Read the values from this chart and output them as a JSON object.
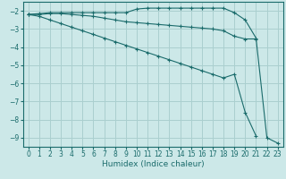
{
  "xlabel": "Humidex (Indice chaleur)",
  "xlim": [
    -0.5,
    23.5
  ],
  "ylim": [
    -9.5,
    -1.5
  ],
  "yticks": [
    -2,
    -3,
    -4,
    -5,
    -6,
    -7,
    -8,
    -9
  ],
  "xticks": [
    0,
    1,
    2,
    3,
    4,
    5,
    6,
    7,
    8,
    9,
    10,
    11,
    12,
    13,
    14,
    15,
    16,
    17,
    18,
    19,
    20,
    21,
    22,
    23
  ],
  "bg_color": "#cce8e8",
  "grid_color": "#aacfcf",
  "line_color": "#1a6b6b",
  "line1_x": [
    0,
    1,
    2,
    3,
    4,
    5,
    6,
    7,
    8,
    9,
    10,
    11,
    12,
    13,
    14,
    15,
    16,
    17,
    18,
    19,
    20,
    21,
    22,
    23
  ],
  "line1_y": [
    -2.2,
    -2.15,
    -2.1,
    -2.1,
    -2.1,
    -2.1,
    -2.1,
    -2.1,
    -2.1,
    -2.1,
    -1.9,
    -1.85,
    -1.85,
    -1.85,
    -1.85,
    -1.85,
    -1.85,
    -1.85,
    -1.85,
    -2.1,
    -2.5,
    -3.5,
    -9.0,
    -9.3
  ],
  "line2_x": [
    0,
    1,
    2,
    3,
    4,
    5,
    6,
    7,
    8,
    9,
    10,
    11,
    12,
    13,
    14,
    15,
    16,
    17,
    18,
    19,
    20,
    21
  ],
  "line2_y": [
    -2.2,
    -2.2,
    -2.15,
    -2.15,
    -2.2,
    -2.25,
    -2.3,
    -2.4,
    -2.5,
    -2.6,
    -2.65,
    -2.7,
    -2.75,
    -2.8,
    -2.85,
    -2.9,
    -2.95,
    -3.0,
    -3.1,
    -3.4,
    -3.55,
    -3.55
  ],
  "line3_x": [
    0,
    1,
    2,
    3,
    4,
    5,
    6,
    7,
    8,
    9,
    10,
    11,
    12,
    13,
    14,
    15,
    16,
    17,
    18,
    19,
    20,
    21
  ],
  "line3_y": [
    -2.2,
    -2.3,
    -2.5,
    -2.7,
    -2.9,
    -3.1,
    -3.3,
    -3.5,
    -3.7,
    -3.9,
    -4.1,
    -4.3,
    -4.5,
    -4.7,
    -4.9,
    -5.1,
    -5.3,
    -5.5,
    -5.7,
    -5.5,
    -7.6,
    -8.9
  ],
  "title_fontsize": 7,
  "axis_fontsize": 6.5,
  "tick_fontsize": 5.5
}
